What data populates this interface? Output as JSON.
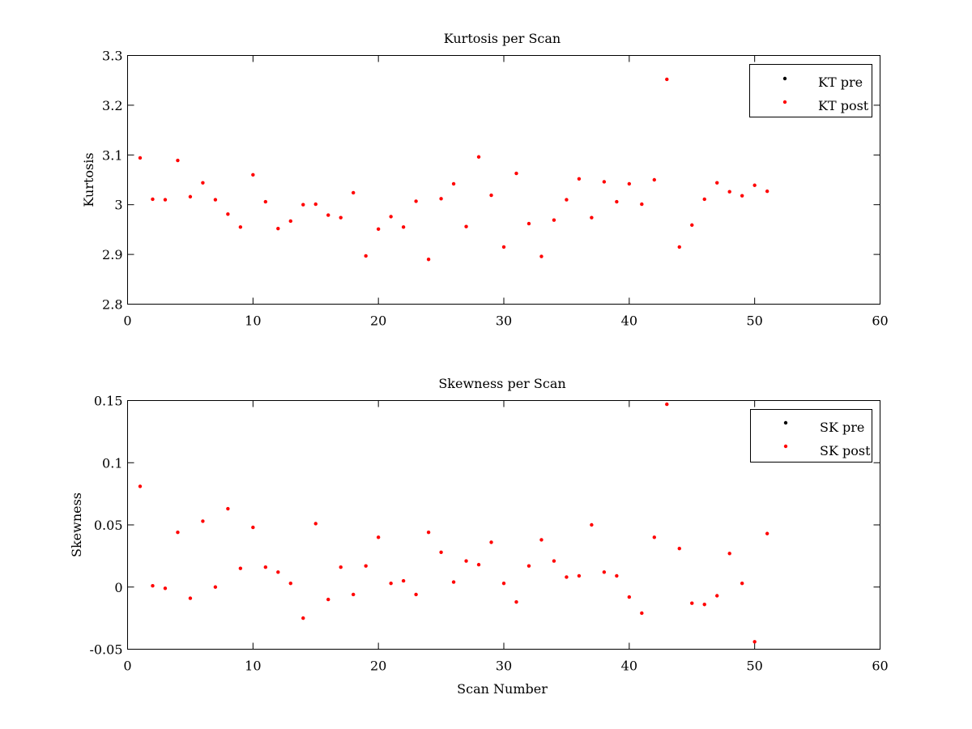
{
  "chart_data": [
    {
      "type": "scatter",
      "title": "Kurtosis per Scan",
      "xlabel": "",
      "ylabel": "Kurtosis",
      "xlim": [
        0,
        60
      ],
      "ylim": [
        2.8,
        3.3
      ],
      "xticks": [
        "0",
        "10",
        "20",
        "30",
        "40",
        "50",
        "60"
      ],
      "yticks": [
        "2.8",
        "2.9",
        "3",
        "3.1",
        "3.2",
        "3.3"
      ],
      "grid": false,
      "legend_position": "top-right",
      "series": [
        {
          "name": "KT pre",
          "color": "#000000",
          "x": [],
          "y": []
        },
        {
          "name": "KT post",
          "color": "#ff0000",
          "x": [
            1,
            2,
            3,
            4,
            5,
            6,
            7,
            8,
            9,
            10,
            11,
            12,
            13,
            14,
            15,
            16,
            17,
            18,
            19,
            20,
            21,
            22,
            23,
            24,
            25,
            26,
            27,
            28,
            29,
            30,
            31,
            32,
            33,
            34,
            35,
            36,
            37,
            38,
            39,
            40,
            41,
            42,
            43,
            44,
            45,
            46,
            47,
            48,
            49,
            50,
            51
          ],
          "y": [
            3.094,
            3.011,
            3.01,
            3.089,
            3.016,
            3.044,
            3.01,
            2.981,
            2.955,
            3.06,
            3.006,
            2.952,
            2.967,
            3.0,
            3.001,
            2.979,
            2.974,
            3.024,
            2.897,
            2.951,
            2.976,
            2.955,
            3.007,
            2.89,
            3.012,
            3.042,
            2.956,
            3.096,
            3.019,
            2.915,
            3.063,
            2.962,
            2.896,
            2.969,
            3.01,
            3.052,
            2.974,
            3.046,
            3.006,
            3.042,
            3.001,
            3.05,
            3.252,
            2.915,
            2.959,
            3.011,
            3.044,
            3.026,
            3.018,
            3.039,
            3.027
          ]
        }
      ]
    },
    {
      "type": "scatter",
      "title": "Skewness per Scan",
      "xlabel": "Scan Number",
      "ylabel": "Skewness",
      "xlim": [
        0,
        60
      ],
      "ylim": [
        -0.05,
        0.15
      ],
      "xticks": [
        "0",
        "10",
        "20",
        "30",
        "40",
        "50",
        "60"
      ],
      "yticks": [
        "-0.05",
        "0",
        "0.05",
        "0.1",
        "0.15"
      ],
      "grid": false,
      "legend_position": "top-right",
      "series": [
        {
          "name": "SK pre",
          "color": "#000000",
          "x": [],
          "y": []
        },
        {
          "name": "SK post",
          "color": "#ff0000",
          "x": [
            1,
            2,
            3,
            4,
            5,
            6,
            7,
            8,
            9,
            10,
            11,
            12,
            13,
            14,
            15,
            16,
            17,
            18,
            19,
            20,
            21,
            22,
            23,
            24,
            25,
            26,
            27,
            28,
            29,
            30,
            31,
            32,
            33,
            34,
            35,
            36,
            37,
            38,
            39,
            40,
            41,
            42,
            43,
            44,
            45,
            46,
            47,
            48,
            49,
            50,
            51
          ],
          "y": [
            0.081,
            0.001,
            -0.001,
            0.044,
            -0.009,
            0.053,
            0.0,
            0.063,
            0.015,
            0.048,
            0.016,
            0.012,
            0.003,
            -0.025,
            0.051,
            -0.01,
            0.016,
            -0.006,
            0.017,
            0.04,
            0.003,
            0.005,
            -0.006,
            0.044,
            0.028,
            0.004,
            0.021,
            0.018,
            0.036,
            0.003,
            -0.012,
            0.017,
            0.038,
            0.021,
            0.008,
            0.009,
            0.05,
            0.012,
            0.009,
            -0.008,
            -0.021,
            0.04,
            0.147,
            0.031,
            -0.013,
            -0.014,
            -0.007,
            0.027,
            0.003,
            -0.044,
            0.043
          ]
        }
      ]
    }
  ]
}
